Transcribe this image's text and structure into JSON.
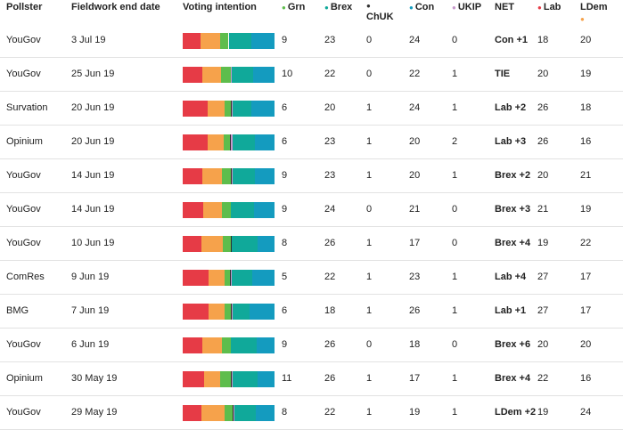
{
  "colors": {
    "lab": "#e63b46",
    "con": "#149bbf",
    "ldem": "#f6a24b",
    "brex": "#10a99a",
    "grn": "#5ebd4c",
    "ukip": "#c698cb",
    "chuk": "#2f2f2f"
  },
  "headers": {
    "pollster": "Pollster",
    "date": "Fieldwork end date",
    "voting": "Voting intention",
    "grn": "Grn",
    "brex": "Brex",
    "chuk": "ChUK",
    "con": "Con",
    "ukip": "UKIP",
    "net": "NET",
    "lab": "Lab",
    "ldem": "LDem"
  },
  "chart_data": {
    "type": "table",
    "bar_order": [
      "lab",
      "ldem",
      "grn",
      "chuk",
      "ukip",
      "brex",
      "con"
    ],
    "rows": [
      {
        "pollster": "YouGov",
        "date": "3 Jul 19",
        "grn": 9,
        "brex": 23,
        "chuk": 0,
        "con": 24,
        "ukip": 0,
        "net": "Con +1",
        "lab": 18,
        "ldem": 20
      },
      {
        "pollster": "YouGov",
        "date": "25 Jun 19",
        "grn": 10,
        "brex": 22,
        "chuk": 0,
        "con": 22,
        "ukip": 1,
        "net": "TIE",
        "lab": 20,
        "ldem": 19
      },
      {
        "pollster": "Survation",
        "date": "20 Jun 19",
        "grn": 6,
        "brex": 20,
        "chuk": 1,
        "con": 24,
        "ukip": 1,
        "net": "Lab +2",
        "lab": 26,
        "ldem": 18
      },
      {
        "pollster": "Opinium",
        "date": "20 Jun 19",
        "grn": 6,
        "brex": 23,
        "chuk": 1,
        "con": 20,
        "ukip": 2,
        "net": "Lab +3",
        "lab": 26,
        "ldem": 16
      },
      {
        "pollster": "YouGov",
        "date": "14 Jun 19",
        "grn": 9,
        "brex": 23,
        "chuk": 1,
        "con": 20,
        "ukip": 1,
        "net": "Brex +2",
        "lab": 20,
        "ldem": 21
      },
      {
        "pollster": "YouGov",
        "date": "14 Jun 19",
        "grn": 9,
        "brex": 24,
        "chuk": 0,
        "con": 21,
        "ukip": 0,
        "net": "Brex +3",
        "lab": 21,
        "ldem": 19
      },
      {
        "pollster": "YouGov",
        "date": "10 Jun 19",
        "grn": 8,
        "brex": 26,
        "chuk": 1,
        "con": 17,
        "ukip": 0,
        "net": "Brex +4",
        "lab": 19,
        "ldem": 22
      },
      {
        "pollster": "ComRes",
        "date": "9 Jun 19",
        "grn": 5,
        "brex": 22,
        "chuk": 1,
        "con": 23,
        "ukip": 1,
        "net": "Lab +4",
        "lab": 27,
        "ldem": 17
      },
      {
        "pollster": "BMG",
        "date": "7 Jun 19",
        "grn": 6,
        "brex": 18,
        "chuk": 1,
        "con": 26,
        "ukip": 1,
        "net": "Lab +1",
        "lab": 27,
        "ldem": 17
      },
      {
        "pollster": "YouGov",
        "date": "6 Jun 19",
        "grn": 9,
        "brex": 26,
        "chuk": 0,
        "con": 18,
        "ukip": 0,
        "net": "Brex +6",
        "lab": 20,
        "ldem": 20
      },
      {
        "pollster": "Opinium",
        "date": "30 May 19",
        "grn": 11,
        "brex": 26,
        "chuk": 1,
        "con": 17,
        "ukip": 1,
        "net": "Brex +4",
        "lab": 22,
        "ldem": 16
      },
      {
        "pollster": "YouGov",
        "date": "29 May 19",
        "grn": 8,
        "brex": 22,
        "chuk": 1,
        "con": 19,
        "ukip": 1,
        "net": "LDem +2",
        "lab": 19,
        "ldem": 24
      }
    ]
  }
}
